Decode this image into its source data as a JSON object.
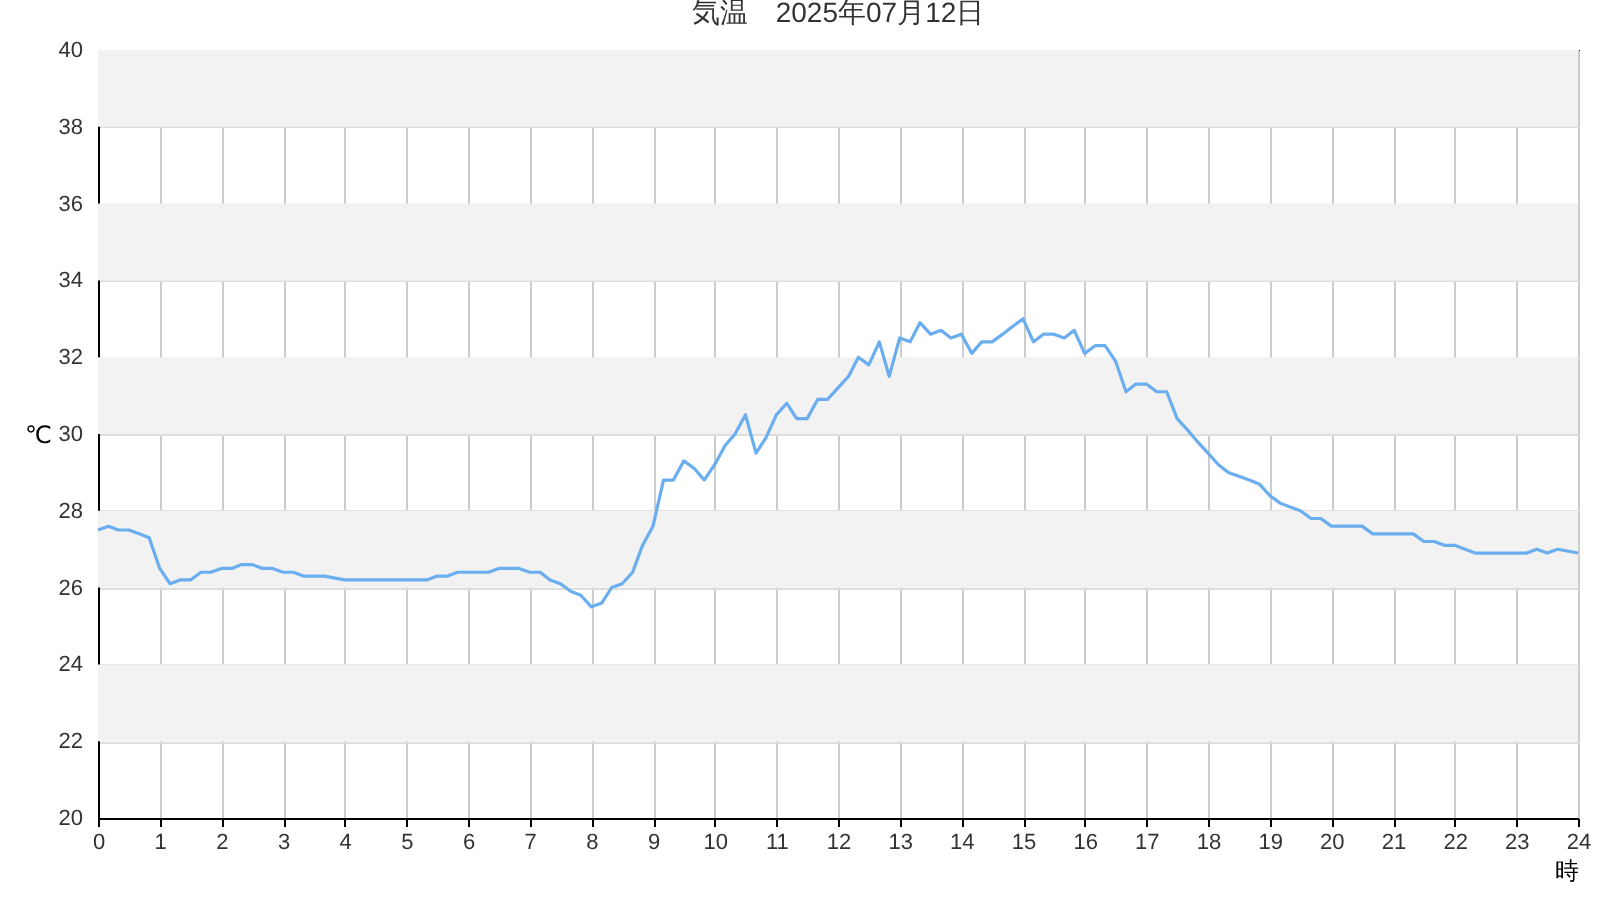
{
  "chart_data": {
    "type": "line",
    "title": "気温　2025年07月12日",
    "xlabel": "時",
    "ylabel": "℃",
    "x": [
      0,
      0.17,
      0.33,
      0.5,
      0.67,
      0.83,
      1,
      1.17,
      1.33,
      1.5,
      1.67,
      1.83,
      2,
      2.17,
      2.33,
      2.5,
      2.67,
      2.83,
      3,
      3.17,
      3.33,
      3.67,
      4,
      5.33,
      5.5,
      5.67,
      5.83,
      6.33,
      6.5,
      6.83,
      7,
      7.17,
      7.33,
      7.5,
      7.67,
      7.83,
      8,
      8.17,
      8.33,
      8.5,
      8.67,
      8.83,
      9,
      9.17,
      9.33,
      9.5,
      9.67,
      9.83,
      10,
      10.17,
      10.33,
      10.5,
      10.67,
      10.83,
      11,
      11.17,
      11.33,
      11.5,
      11.67,
      11.83,
      12,
      12.17,
      12.33,
      12.5,
      12.67,
      12.83,
      13,
      13.17,
      13.33,
      13.5,
      13.67,
      13.83,
      14,
      14.17,
      14.33,
      14.5,
      14.67,
      14.83,
      15,
      15.17,
      15.33,
      15.5,
      15.67,
      15.83,
      16,
      16.17,
      16.33,
      16.5,
      16.67,
      16.83,
      17,
      17.17,
      17.33,
      17.5,
      17.67,
      17.83,
      18,
      18.17,
      18.33,
      18.5,
      18.67,
      18.83,
      19,
      19.17,
      19.33,
      19.5,
      19.67,
      19.83,
      20,
      20.5,
      20.67,
      21.17,
      21.33,
      21.5,
      21.67,
      21.83,
      22,
      22.17,
      22.33,
      23.17,
      23.33,
      23.5,
      23.67,
      24
    ],
    "series": [
      {
        "color": "#6aaef0",
        "values": [
          27.5,
          27.6,
          27.5,
          27.5,
          27.4,
          27.3,
          26.5,
          26.1,
          26.2,
          26.2,
          26.4,
          26.4,
          26.5,
          26.5,
          26.6,
          26.6,
          26.5,
          26.5,
          26.4,
          26.4,
          26.3,
          26.3,
          26.2,
          26.2,
          26.3,
          26.3,
          26.4,
          26.4,
          26.5,
          26.5,
          26.4,
          26.4,
          26.2,
          26.1,
          25.9,
          25.8,
          25.5,
          25.6,
          26.0,
          26.1,
          26.4,
          27.1,
          27.6,
          28.8,
          28.8,
          29.3,
          29.1,
          28.8,
          29.2,
          29.7,
          30.0,
          30.5,
          29.5,
          29.9,
          30.5,
          30.8,
          30.4,
          30.4,
          30.9,
          30.9,
          31.2,
          31.5,
          32.0,
          31.8,
          32.4,
          31.5,
          32.5,
          32.4,
          32.9,
          32.6,
          32.7,
          32.5,
          32.6,
          32.1,
          32.4,
          32.4,
          32.6,
          32.8,
          33.0,
          32.4,
          32.6,
          32.6,
          32.5,
          32.7,
          32.1,
          32.3,
          32.3,
          31.9,
          31.1,
          31.3,
          31.3,
          31.1,
          31.1,
          30.4,
          30.1,
          29.8,
          29.5,
          29.2,
          29.0,
          28.9,
          28.8,
          28.7,
          28.4,
          28.2,
          28.1,
          28.0,
          27.8,
          27.8,
          27.6,
          27.6,
          27.4,
          27.4,
          27.4,
          27.2,
          27.2,
          27.1,
          27.1,
          27.0,
          26.9,
          26.9,
          27.0,
          26.9,
          27.0,
          26.9
        ]
      }
    ],
    "xlim": [
      0,
      24
    ],
    "xticks": [
      0,
      1,
      2,
      3,
      4,
      5,
      6,
      7,
      8,
      9,
      10,
      11,
      12,
      13,
      14,
      15,
      16,
      17,
      18,
      19,
      20,
      21,
      22,
      23,
      24
    ],
    "ylim": [
      20,
      40
    ],
    "yticks": [
      20,
      22,
      24,
      26,
      28,
      30,
      32,
      34,
      36,
      38,
      40
    ],
    "grid": true,
    "marker": "none",
    "line_style": "solid",
    "bands": [
      {
        "axis": "y",
        "from": 22,
        "to": 24,
        "color": "#f2f2f2"
      },
      {
        "axis": "y",
        "from": 26,
        "to": 28,
        "color": "#f2f2f2"
      },
      {
        "axis": "y",
        "from": 30,
        "to": 32,
        "color": "#f2f2f2"
      },
      {
        "axis": "y",
        "from": 34,
        "to": 36,
        "color": "#f2f2f2"
      },
      {
        "axis": "y",
        "from": 38,
        "to": 40,
        "color": "#f2f2f2"
      }
    ]
  }
}
